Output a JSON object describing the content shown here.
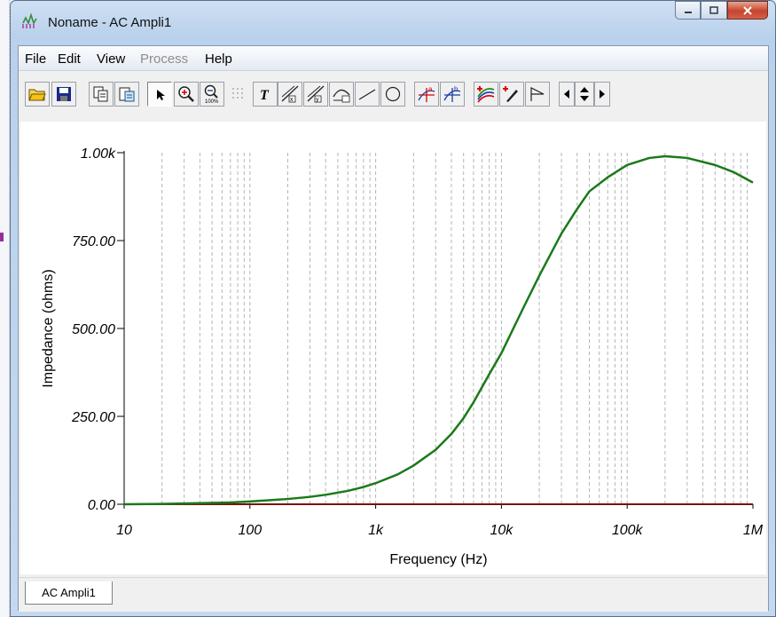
{
  "window": {
    "title": "Noname - AC Ampli1"
  },
  "menu": [
    {
      "label": "File",
      "enabled": true
    },
    {
      "label": "Edit",
      "enabled": true
    },
    {
      "label": "View",
      "enabled": true
    },
    {
      "label": "Process",
      "enabled": false
    },
    {
      "label": "Help",
      "enabled": true
    }
  ],
  "toolbar": {
    "icons": [
      "open-folder-icon",
      "save-disk-icon",
      "copy-icon",
      "paste-special-icon",
      "pointer-arrow-icon",
      "zoom-in-icon",
      "zoom-100-icon",
      "grid-icon",
      "text-tool-icon",
      "x-cursor-icon",
      "y-cursor-icon",
      "curve-label-icon",
      "line-tool-icon",
      "circle-tool-icon",
      "cursor-a-icon",
      "cursor-b-icon",
      "add-curve-icon",
      "pen-marker-icon",
      "flag-icon",
      "scroll-left-icon",
      "scroll-updown-icon",
      "scroll-right-icon"
    ]
  },
  "colors": {
    "trace": "#1a7a1a",
    "baseline": "#7a1010",
    "grid": "#b5b5b5"
  },
  "tabs": [
    {
      "label": "AC Ampli1",
      "active": true
    }
  ],
  "chart_data": {
    "type": "line",
    "xlabel": "Frequency (Hz)",
    "ylabel": "Impedance (ohms)",
    "x_scale": "log",
    "xlim": [
      10,
      1000000
    ],
    "ylim": [
      0,
      1000
    ],
    "x_tick_labels": [
      "10",
      "100",
      "1k",
      "10k",
      "100k",
      "1M"
    ],
    "x_tick_values": [
      10,
      100,
      1000,
      10000,
      100000,
      1000000
    ],
    "y_tick_labels": [
      "0.00",
      "250.00",
      "500.00",
      "750.00",
      "1.00k"
    ],
    "y_tick_values": [
      0,
      250,
      500,
      750,
      1000
    ],
    "grid": "vertical-dashed",
    "series": [
      {
        "x": [
          10,
          20,
          40,
          70,
          100,
          150,
          200,
          300,
          400,
          600,
          800,
          1000,
          1500,
          2000,
          3000,
          4000,
          5000,
          6000,
          8000,
          10000,
          15000,
          20000,
          30000,
          40000,
          50000,
          70000,
          100000,
          150000,
          200000,
          300000,
          500000,
          700000,
          1000000
        ],
        "y": [
          0,
          1,
          3,
          5,
          8,
          12,
          15,
          21,
          27,
          38,
          49,
          60,
          85,
          110,
          155,
          200,
          245,
          290,
          370,
          430,
          560,
          650,
          770,
          840,
          890,
          930,
          965,
          985,
          990,
          985,
          965,
          945,
          915
        ]
      },
      {
        "x": [
          10,
          1000000
        ],
        "y": [
          0,
          0
        ]
      }
    ]
  }
}
